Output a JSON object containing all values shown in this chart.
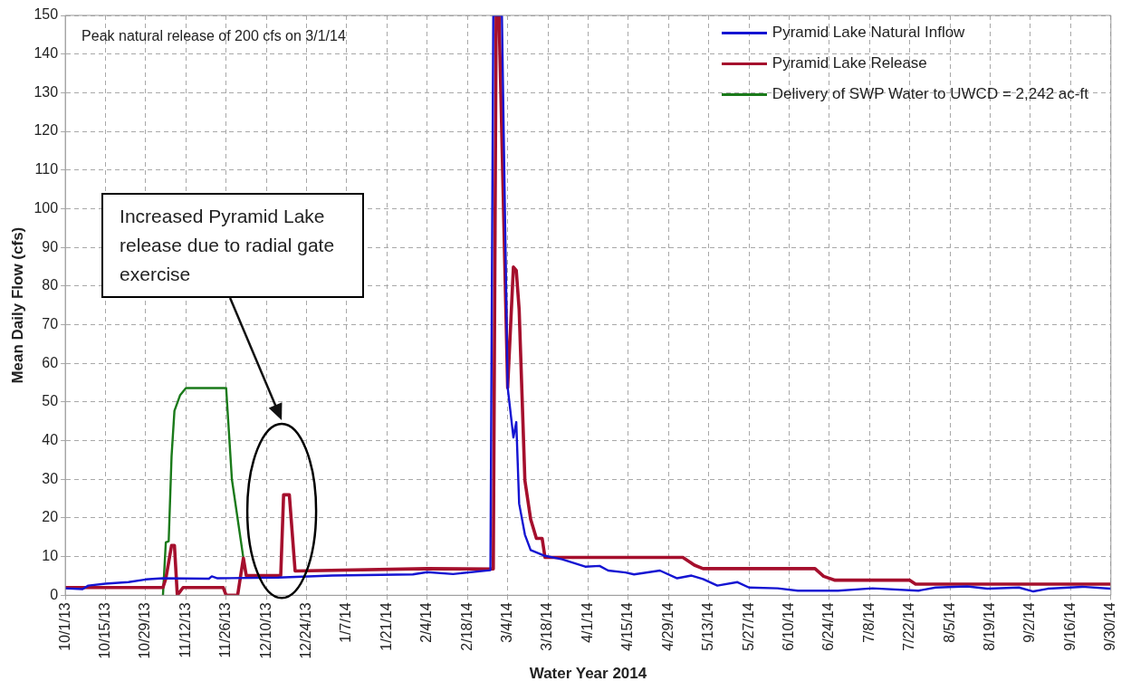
{
  "chart_data": {
    "type": "line",
    "xlabel": "Water Year 2014",
    "ylabel": "Mean Daily Flow (cfs)",
    "xlim": [
      "2013-10-01",
      "2014-09-30"
    ],
    "xticks": [
      {
        "value": "2013-10-01",
        "label": "10/1/13"
      },
      {
        "value": "2013-10-15",
        "label": "10/15/13"
      },
      {
        "value": "2013-10-29",
        "label": "10/29/13"
      },
      {
        "value": "2013-11-12",
        "label": "11/12/13"
      },
      {
        "value": "2013-11-26",
        "label": "11/26/13"
      },
      {
        "value": "2013-12-10",
        "label": "12/10/13"
      },
      {
        "value": "2013-12-24",
        "label": "12/24/13"
      },
      {
        "value": "2014-01-07",
        "label": "1/7/14"
      },
      {
        "value": "2014-01-21",
        "label": "1/21/14"
      },
      {
        "value": "2014-02-04",
        "label": "2/4/14"
      },
      {
        "value": "2014-02-18",
        "label": "2/18/14"
      },
      {
        "value": "2014-03-04",
        "label": "3/4/14"
      },
      {
        "value": "2014-03-18",
        "label": "3/18/14"
      },
      {
        "value": "2014-04-01",
        "label": "4/1/14"
      },
      {
        "value": "2014-04-15",
        "label": "4/15/14"
      },
      {
        "value": "2014-04-29",
        "label": "4/29/14"
      },
      {
        "value": "2014-05-13",
        "label": "5/13/14"
      },
      {
        "value": "2014-05-27",
        "label": "5/27/14"
      },
      {
        "value": "2014-06-10",
        "label": "6/10/14"
      },
      {
        "value": "2014-06-24",
        "label": "6/24/14"
      },
      {
        "value": "2014-07-08",
        "label": "7/8/14"
      },
      {
        "value": "2014-07-22",
        "label": "7/22/14"
      },
      {
        "value": "2014-08-05",
        "label": "8/5/14"
      },
      {
        "value": "2014-08-19",
        "label": "8/19/14"
      },
      {
        "value": "2014-09-02",
        "label": "9/2/14"
      },
      {
        "value": "2014-09-16",
        "label": "9/16/14"
      },
      {
        "value": "2014-09-30",
        "label": "9/30/14"
      }
    ],
    "ylim": [
      0,
      150
    ],
    "yticks": [
      0,
      10,
      20,
      30,
      40,
      50,
      60,
      70,
      80,
      90,
      100,
      110,
      120,
      130,
      140,
      150
    ],
    "grid": true,
    "legend": "top right",
    "marker": "none",
    "line_style": "solid",
    "series": [
      {
        "name": "Pyramid Lake Natural Inflow",
        "color": "#1414d2",
        "x": [
          "2013-10-01",
          "2013-10-07",
          "2013-10-09",
          "2013-10-15",
          "2013-10-23",
          "2013-10-29",
          "2013-11-04",
          "2013-11-20",
          "2013-11-21",
          "2013-11-23",
          "2013-12-14",
          "2014-01-02",
          "2014-01-30",
          "2014-02-04",
          "2014-02-13",
          "2014-02-26",
          "2014-02-27",
          "2014-03-02",
          "2014-03-04",
          "2014-03-06",
          "2014-03-07",
          "2014-03-08",
          "2014-03-10",
          "2014-03-12",
          "2014-03-17",
          "2014-03-23",
          "2014-03-31",
          "2014-04-05",
          "2014-04-08",
          "2014-04-14",
          "2014-04-17",
          "2014-04-26",
          "2014-05-02",
          "2014-05-07",
          "2014-05-11",
          "2014-05-16",
          "2014-05-23",
          "2014-05-27",
          "2014-06-06",
          "2014-06-13",
          "2014-06-27",
          "2014-07-09",
          "2014-07-25",
          "2014-07-31",
          "2014-08-11",
          "2014-08-18",
          "2014-08-29",
          "2014-09-03",
          "2014-09-08",
          "2014-09-20",
          "2014-09-30"
        ],
        "values": [
          1.8,
          1.6,
          2.5,
          3.0,
          3.4,
          4.1,
          4.4,
          4.3,
          4.9,
          4.4,
          4.6,
          5.1,
          5.4,
          6.0,
          5.5,
          6.5,
          150,
          150,
          53.8,
          40.8,
          44.8,
          23.7,
          15.7,
          11.7,
          10.2,
          9.3,
          7.4,
          7.6,
          6.4,
          5.9,
          5.4,
          6.4,
          4.4,
          5.1,
          4.2,
          2.5,
          3.4,
          2.0,
          1.8,
          1.2,
          1.2,
          1.8,
          1.2,
          2.0,
          2.3,
          1.7,
          2.0,
          1.0,
          1.7,
          2.2,
          1.7
        ]
      },
      {
        "name": "Pyramid Lake Release",
        "color": "#a50f2d",
        "x": [
          "2013-10-01",
          "2013-11-04",
          "2013-11-05",
          "2013-11-07",
          "2013-11-08",
          "2013-11-09",
          "2013-11-11",
          "2013-11-25",
          "2013-11-26",
          "2013-11-30",
          "2013-12-02",
          "2013-12-03",
          "2013-12-15",
          "2013-12-16",
          "2013-12-18",
          "2013-12-20",
          "2014-02-04",
          "2014-02-27",
          "2014-02-28",
          "2014-03-01",
          "2014-03-04",
          "2014-03-06",
          "2014-03-07",
          "2014-03-08",
          "2014-03-10",
          "2014-03-12",
          "2014-03-14",
          "2014-03-16",
          "2014-03-17",
          "2014-05-04",
          "2014-05-08",
          "2014-05-11",
          "2014-06-19",
          "2014-06-22",
          "2014-06-26",
          "2014-07-22",
          "2014-07-24",
          "2014-09-30"
        ],
        "values": [
          2.0,
          2.0,
          4.3,
          12.9,
          12.9,
          0,
          2.0,
          2.0,
          0,
          0,
          9.6,
          5.1,
          5.1,
          26,
          26,
          6.3,
          6.9,
          6.8,
          150,
          150,
          53.7,
          84.9,
          84,
          73.9,
          29.7,
          19.7,
          14.7,
          14.7,
          9.8,
          9.8,
          7.8,
          6.9,
          6.9,
          4.9,
          3.9,
          3.9,
          2.9,
          2.9
        ]
      },
      {
        "name": "Delivery of SWP Water to UWCD = 2,242 ac-ft",
        "color": "#1a7a1a",
        "x": [
          "2013-11-04",
          "2013-11-05",
          "2013-11-06",
          "2013-11-07",
          "2013-11-08",
          "2013-11-10",
          "2013-11-12",
          "2013-11-26",
          "2013-11-28",
          "2013-12-02"
        ],
        "values": [
          0,
          13.7,
          14,
          36,
          47.7,
          51.8,
          53.6,
          53.6,
          30,
          9.6
        ]
      }
    ],
    "annotations": [
      "Peak natural release of 200 cfs on 3/1/14",
      "Increased Pyramid Lake release due to radial gate exercise"
    ]
  }
}
